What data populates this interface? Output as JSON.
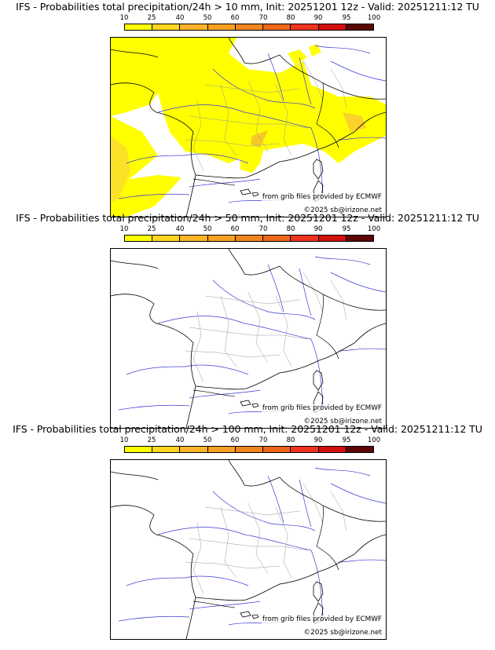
{
  "colorbar": {
    "ticks": [
      "10",
      "25",
      "40",
      "50",
      "60",
      "70",
      "80",
      "90",
      "95",
      "100"
    ],
    "colors": [
      "#ffff00",
      "#ffd51e",
      "#fbb328",
      "#f5a023",
      "#f08520",
      "#ec6718",
      "#ef3320",
      "#d10f0f",
      "#9a0810",
      "#5c0705"
    ]
  },
  "panels": [
    {
      "title": "IFS - Probabilities total precipitation/24h > 10 mm, Init: 20251201 12z - Valid: 20251211:12 TU",
      "threshold_mm": 10,
      "precip_shading": "widespread",
      "source_label": "from grib files provided by ECMWF",
      "copyright": "©2025 sb@irizone.net"
    },
    {
      "title": "IFS - Probabilities total precipitation/24h > 50 mm, Init: 20251201 12z - Valid: 20251211:12 TU",
      "threshold_mm": 50,
      "precip_shading": "none",
      "source_label": "from grib files provided by ECMWF",
      "copyright": "©2025 sb@irizone.net"
    },
    {
      "title": "IFS - Probabilities total precipitation/24h > 100 mm, Init: 20251201 12z - Valid: 20251211:12 TU",
      "threshold_mm": 100,
      "precip_shading": "none",
      "source_label": "from grib files provided by ECMWF",
      "copyright": "©2025 sb@irizone.net"
    }
  ]
}
